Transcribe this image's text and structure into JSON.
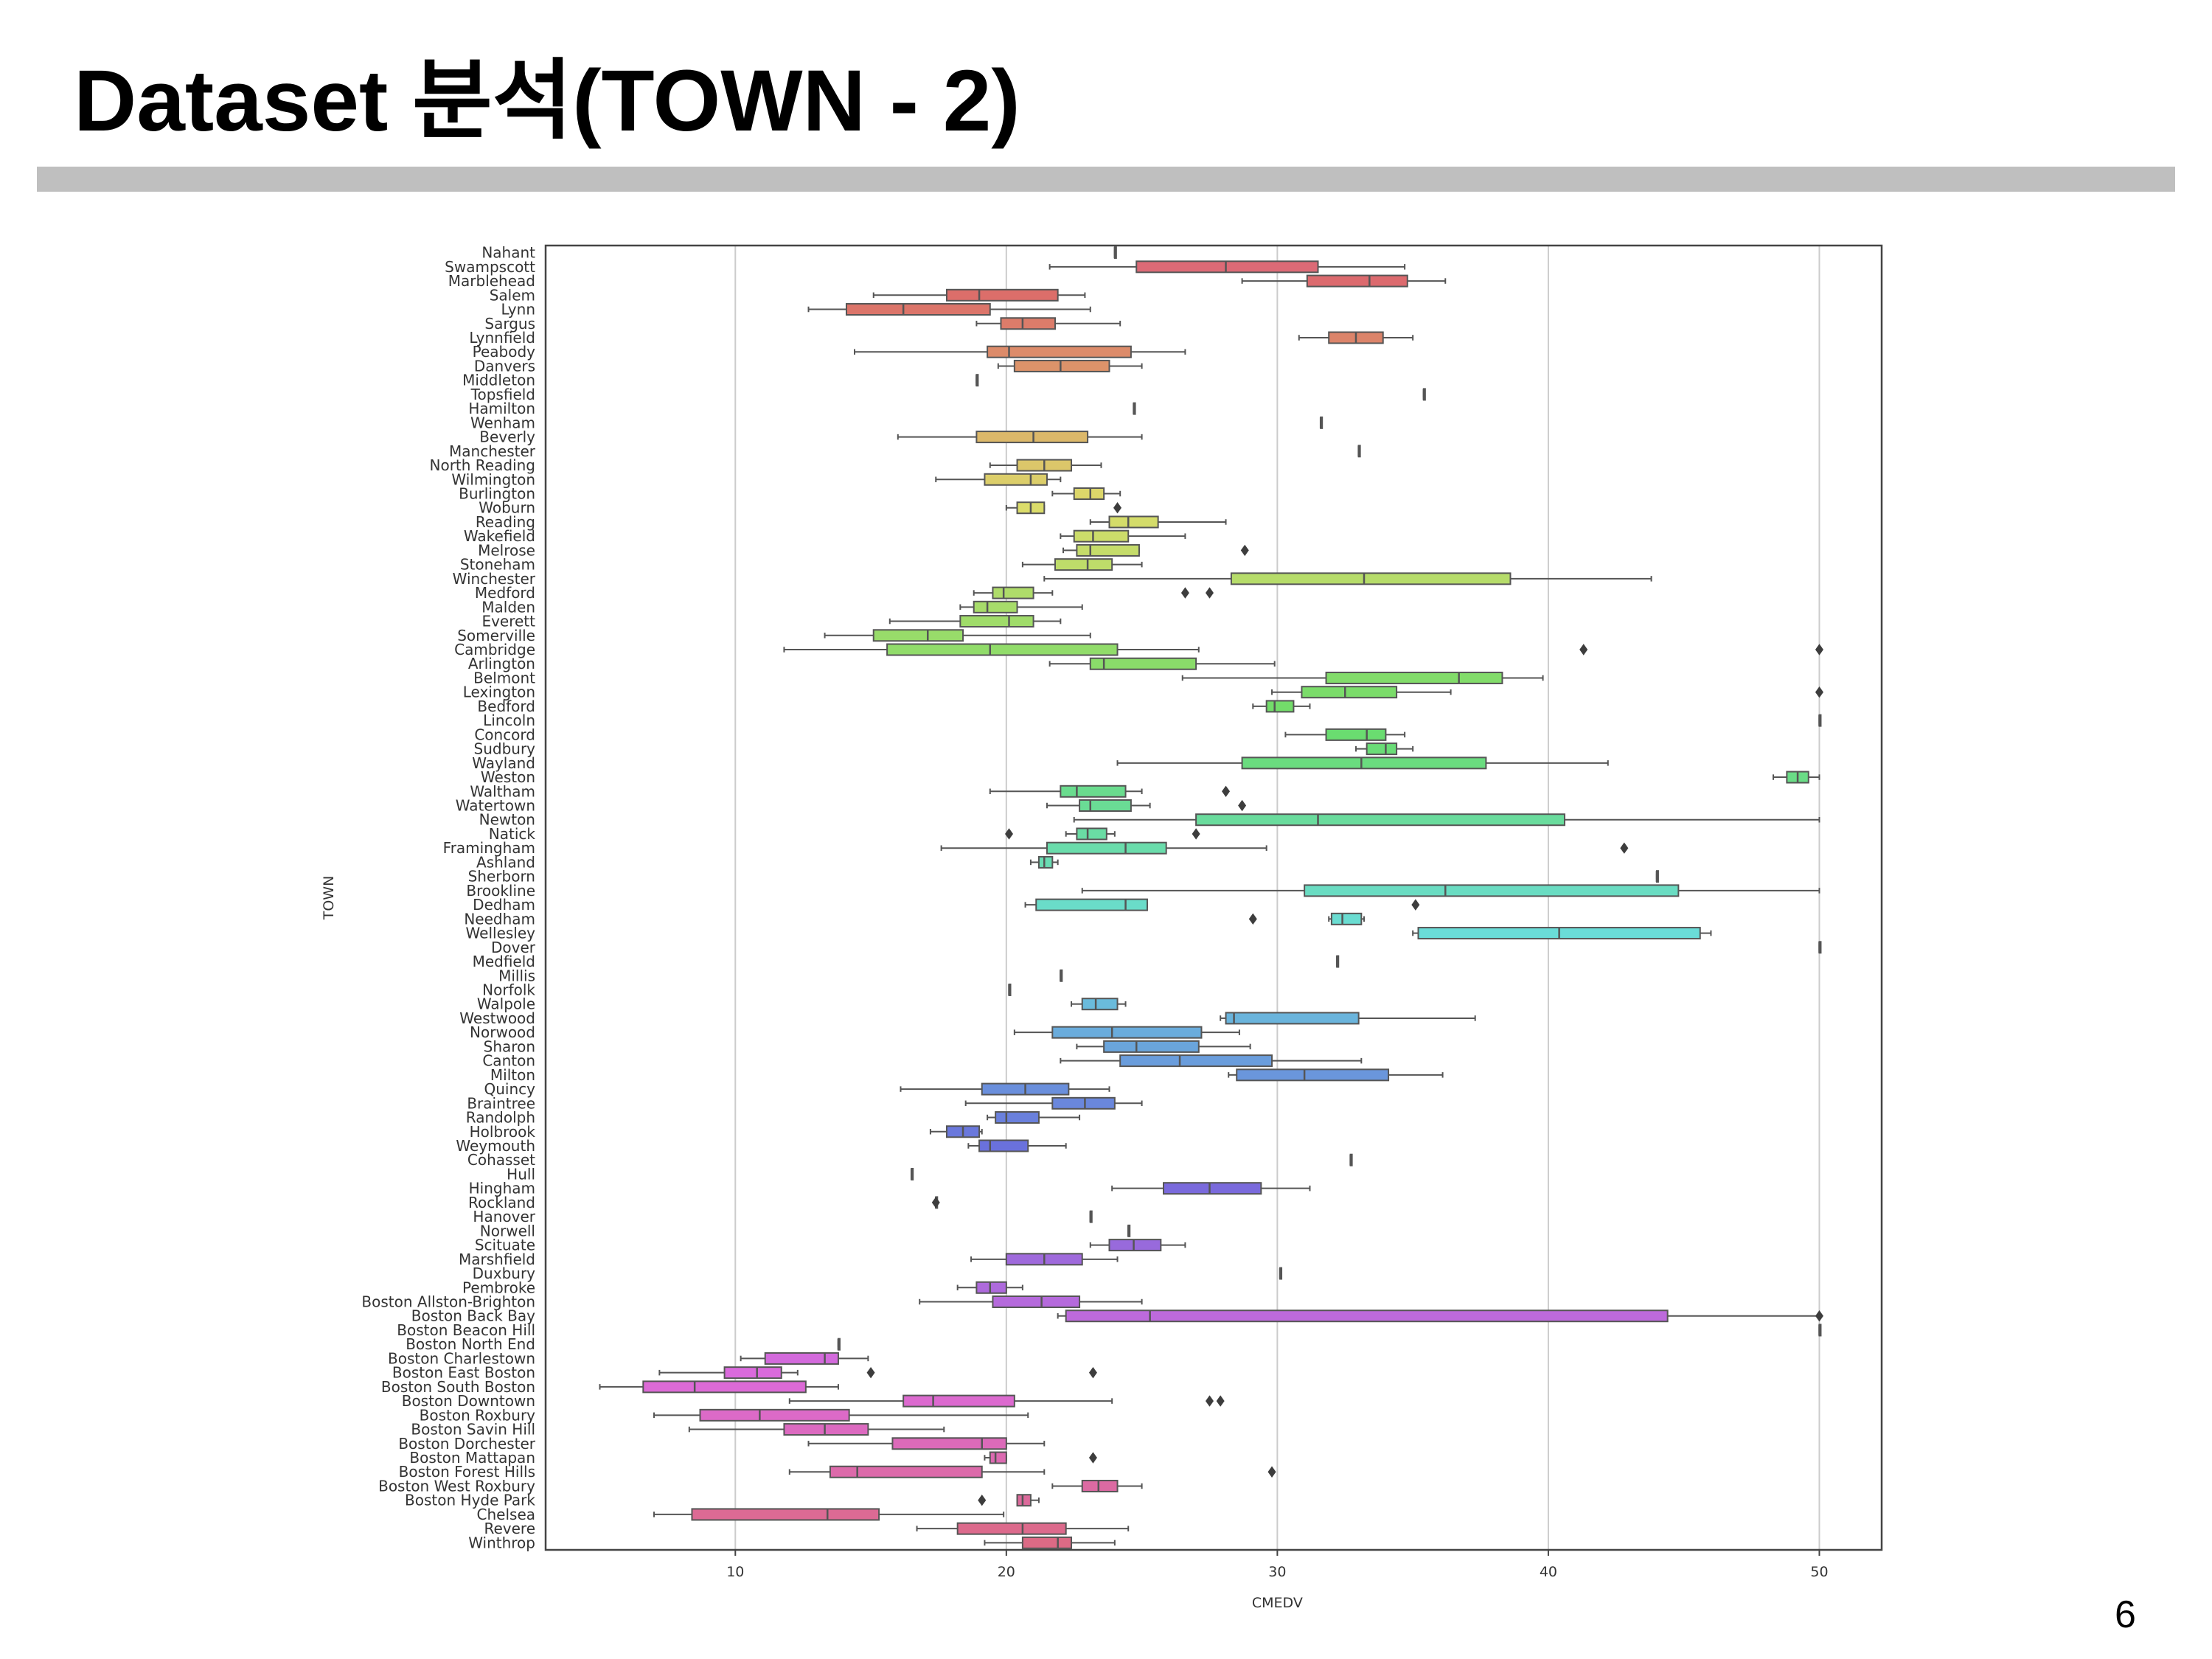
{
  "slide": {
    "title": "Dataset 분석(TOWN - 2)",
    "page_number": "6"
  },
  "chart_data": {
    "type": "boxplot",
    "orientation": "horizontal",
    "xlabel": "CMEDV",
    "ylabel": "TOWN",
    "xlim": [
      3,
      52.3
    ],
    "xticks": [
      10,
      20,
      30,
      40,
      50
    ],
    "grid": "vertical",
    "palette": "husl",
    "series": [
      {
        "town": "Nahant",
        "q1": 24,
        "median": 24,
        "q3": 24,
        "whisker_low": 24,
        "whisker_high": 24,
        "outliers": []
      },
      {
        "town": "Swampscott",
        "q1": 24.8,
        "median": 28.1,
        "q3": 31.5,
        "whisker_low": 21.6,
        "whisker_high": 34.7,
        "outliers": []
      },
      {
        "town": "Marblehead",
        "q1": 31.1,
        "median": 33.4,
        "q3": 34.8,
        "whisker_low": 28.7,
        "whisker_high": 36.2,
        "outliers": []
      },
      {
        "town": "Salem",
        "q1": 17.8,
        "median": 19.0,
        "q3": 21.9,
        "whisker_low": 15.1,
        "whisker_high": 22.9,
        "outliers": []
      },
      {
        "town": "Lynn",
        "q1": 14.1,
        "median": 16.2,
        "q3": 19.4,
        "whisker_low": 12.7,
        "whisker_high": 23.1,
        "outliers": []
      },
      {
        "town": "Sargus",
        "q1": 19.8,
        "median": 20.6,
        "q3": 21.8,
        "whisker_low": 18.9,
        "whisker_high": 24.2,
        "outliers": []
      },
      {
        "town": "Lynnfield",
        "q1": 31.9,
        "median": 32.9,
        "q3": 33.9,
        "whisker_low": 30.8,
        "whisker_high": 35.0,
        "outliers": []
      },
      {
        "town": "Peabody",
        "q1": 19.3,
        "median": 20.1,
        "q3": 24.6,
        "whisker_low": 14.4,
        "whisker_high": 26.6,
        "outliers": []
      },
      {
        "town": "Danvers",
        "q1": 20.3,
        "median": 22.0,
        "q3": 23.8,
        "whisker_low": 19.7,
        "whisker_high": 25.0,
        "outliers": []
      },
      {
        "town": "Middleton",
        "q1": 18.9,
        "median": 18.9,
        "q3": 18.9,
        "whisker_low": 18.9,
        "whisker_high": 18.9,
        "outliers": []
      },
      {
        "town": "Topsfield",
        "q1": 35.4,
        "median": 35.4,
        "q3": 35.4,
        "whisker_low": 35.4,
        "whisker_high": 35.4,
        "outliers": []
      },
      {
        "town": "Hamilton",
        "q1": 24.7,
        "median": 24.7,
        "q3": 24.7,
        "whisker_low": 24.7,
        "whisker_high": 24.7,
        "outliers": []
      },
      {
        "town": "Wenham",
        "q1": 31.6,
        "median": 31.6,
        "q3": 31.6,
        "whisker_low": 31.6,
        "whisker_high": 31.6,
        "outliers": []
      },
      {
        "town": "Beverly",
        "q1": 18.9,
        "median": 21.0,
        "q3": 23.0,
        "whisker_low": 16.0,
        "whisker_high": 25.0,
        "outliers": []
      },
      {
        "town": "Manchester",
        "q1": 33.0,
        "median": 33.0,
        "q3": 33.0,
        "whisker_low": 33.0,
        "whisker_high": 33.0,
        "outliers": []
      },
      {
        "town": "North Reading",
        "q1": 20.4,
        "median": 21.4,
        "q3": 22.4,
        "whisker_low": 19.4,
        "whisker_high": 23.5,
        "outliers": []
      },
      {
        "town": "Wilmington",
        "q1": 19.2,
        "median": 20.9,
        "q3": 21.5,
        "whisker_low": 17.4,
        "whisker_high": 22.0,
        "outliers": []
      },
      {
        "town": "Burlington",
        "q1": 22.5,
        "median": 23.1,
        "q3": 23.6,
        "whisker_low": 21.7,
        "whisker_high": 24.2,
        "outliers": []
      },
      {
        "town": "Woburn",
        "q1": 20.4,
        "median": 20.9,
        "q3": 21.4,
        "whisker_low": 20.0,
        "whisker_high": 21.4,
        "outliers": [
          24.1
        ]
      },
      {
        "town": "Reading",
        "q1": 23.8,
        "median": 24.5,
        "q3": 25.6,
        "whisker_low": 23.1,
        "whisker_high": 28.1,
        "outliers": []
      },
      {
        "town": "Wakefield",
        "q1": 22.5,
        "median": 23.2,
        "q3": 24.5,
        "whisker_low": 22.0,
        "whisker_high": 26.6,
        "outliers": []
      },
      {
        "town": "Melrose",
        "q1": 22.6,
        "median": 23.1,
        "q3": 24.9,
        "whisker_low": 22.1,
        "whisker_high": 24.9,
        "outliers": [
          28.8
        ]
      },
      {
        "town": "Stoneham",
        "q1": 21.8,
        "median": 23.0,
        "q3": 23.9,
        "whisker_low": 20.6,
        "whisker_high": 25.0,
        "outliers": []
      },
      {
        "town": "Winchester",
        "q1": 28.3,
        "median": 33.2,
        "q3": 38.6,
        "whisker_low": 21.4,
        "whisker_high": 43.8,
        "outliers": []
      },
      {
        "town": "Medford",
        "q1": 19.5,
        "median": 19.9,
        "q3": 21.0,
        "whisker_low": 18.8,
        "whisker_high": 21.7,
        "outliers": [
          26.6,
          27.5
        ]
      },
      {
        "town": "Malden",
        "q1": 18.8,
        "median": 19.3,
        "q3": 20.4,
        "whisker_low": 18.3,
        "whisker_high": 22.8,
        "outliers": []
      },
      {
        "town": "Everett",
        "q1": 18.3,
        "median": 20.1,
        "q3": 21.0,
        "whisker_low": 15.7,
        "whisker_high": 22.0,
        "outliers": []
      },
      {
        "town": "Somerville",
        "q1": 15.1,
        "median": 17.1,
        "q3": 18.4,
        "whisker_low": 13.3,
        "whisker_high": 23.1,
        "outliers": []
      },
      {
        "town": "Cambridge",
        "q1": 15.6,
        "median": 19.4,
        "q3": 24.1,
        "whisker_low": 11.8,
        "whisker_high": 27.1,
        "outliers": [
          41.3,
          50.0
        ]
      },
      {
        "town": "Arlington",
        "q1": 23.1,
        "median": 23.6,
        "q3": 27.0,
        "whisker_low": 21.6,
        "whisker_high": 29.9,
        "outliers": []
      },
      {
        "town": "Belmont",
        "q1": 31.8,
        "median": 36.7,
        "q3": 38.3,
        "whisker_low": 26.5,
        "whisker_high": 39.8,
        "outliers": []
      },
      {
        "town": "Lexington",
        "q1": 30.9,
        "median": 32.5,
        "q3": 34.4,
        "whisker_low": 29.8,
        "whisker_high": 36.4,
        "outliers": [
          50.0
        ]
      },
      {
        "town": "Bedford",
        "q1": 29.6,
        "median": 29.9,
        "q3": 30.6,
        "whisker_low": 29.1,
        "whisker_high": 31.2,
        "outliers": []
      },
      {
        "town": "Lincoln",
        "q1": 50.0,
        "median": 50.0,
        "q3": 50.0,
        "whisker_low": 50.0,
        "whisker_high": 50.0,
        "outliers": []
      },
      {
        "town": "Concord",
        "q1": 31.8,
        "median": 33.3,
        "q3": 34.0,
        "whisker_low": 30.3,
        "whisker_high": 34.7,
        "outliers": []
      },
      {
        "town": "Sudbury",
        "q1": 33.3,
        "median": 34.0,
        "q3": 34.4,
        "whisker_low": 32.9,
        "whisker_high": 35.0,
        "outliers": []
      },
      {
        "town": "Wayland",
        "q1": 28.7,
        "median": 33.1,
        "q3": 37.7,
        "whisker_low": 24.1,
        "whisker_high": 42.2,
        "outliers": []
      },
      {
        "town": "Weston",
        "q1": 48.8,
        "median": 49.2,
        "q3": 49.6,
        "whisker_low": 48.3,
        "whisker_high": 50.0,
        "outliers": []
      },
      {
        "town": "Waltham",
        "q1": 22.0,
        "median": 22.6,
        "q3": 24.4,
        "whisker_low": 19.4,
        "whisker_high": 25.0,
        "outliers": [
          28.1
        ]
      },
      {
        "town": "Watertown",
        "q1": 22.7,
        "median": 23.1,
        "q3": 24.6,
        "whisker_low": 21.5,
        "whisker_high": 25.3,
        "outliers": [
          28.7
        ]
      },
      {
        "town": "Newton",
        "q1": 27.0,
        "median": 31.5,
        "q3": 40.6,
        "whisker_low": 22.5,
        "whisker_high": 50.0,
        "outliers": []
      },
      {
        "town": "Natick",
        "q1": 22.6,
        "median": 23.0,
        "q3": 23.7,
        "whisker_low": 22.2,
        "whisker_high": 24.0,
        "outliers": [
          20.1,
          27.0
        ]
      },
      {
        "town": "Framingham",
        "q1": 21.5,
        "median": 24.4,
        "q3": 25.9,
        "whisker_low": 17.6,
        "whisker_high": 29.6,
        "outliers": [
          42.8
        ]
      },
      {
        "town": "Ashland",
        "q1": 21.2,
        "median": 21.4,
        "q3": 21.7,
        "whisker_low": 20.9,
        "whisker_high": 21.9,
        "outliers": []
      },
      {
        "town": "Sherborn",
        "q1": 44.0,
        "median": 44.0,
        "q3": 44.0,
        "whisker_low": 44.0,
        "whisker_high": 44.0,
        "outliers": []
      },
      {
        "town": "Brookline",
        "q1": 31.0,
        "median": 36.2,
        "q3": 44.8,
        "whisker_low": 22.8,
        "whisker_high": 50.0,
        "outliers": []
      },
      {
        "town": "Dedham",
        "q1": 21.1,
        "median": 24.4,
        "q3": 25.2,
        "whisker_low": 20.7,
        "whisker_high": 25.2,
        "outliers": [
          35.1
        ]
      },
      {
        "town": "Needham",
        "q1": 32.0,
        "median": 32.4,
        "q3": 33.1,
        "whisker_low": 31.9,
        "whisker_high": 33.2,
        "outliers": [
          29.1
        ]
      },
      {
        "town": "Wellesley",
        "q1": 35.2,
        "median": 40.4,
        "q3": 45.6,
        "whisker_low": 35.0,
        "whisker_high": 46.0,
        "outliers": []
      },
      {
        "town": "Dover",
        "q1": 50.0,
        "median": 50.0,
        "q3": 50.0,
        "whisker_low": 50.0,
        "whisker_high": 50.0,
        "outliers": []
      },
      {
        "town": "Medfield",
        "q1": 32.2,
        "median": 32.2,
        "q3": 32.2,
        "whisker_low": 32.2,
        "whisker_high": 32.2,
        "outliers": []
      },
      {
        "town": "Millis",
        "q1": 22.0,
        "median": 22.0,
        "q3": 22.0,
        "whisker_low": 22.0,
        "whisker_high": 22.0,
        "outliers": []
      },
      {
        "town": "Norfolk",
        "q1": 20.1,
        "median": 20.1,
        "q3": 20.1,
        "whisker_low": 20.1,
        "whisker_high": 20.1,
        "outliers": []
      },
      {
        "town": "Walpole",
        "q1": 22.8,
        "median": 23.3,
        "q3": 24.1,
        "whisker_low": 22.4,
        "whisker_high": 24.4,
        "outliers": []
      },
      {
        "town": "Westwood",
        "q1": 28.1,
        "median": 28.4,
        "q3": 33.0,
        "whisker_low": 27.9,
        "whisker_high": 37.3,
        "outliers": []
      },
      {
        "town": "Norwood",
        "q1": 21.7,
        "median": 23.9,
        "q3": 27.2,
        "whisker_low": 20.3,
        "whisker_high": 28.6,
        "outliers": []
      },
      {
        "town": "Sharon",
        "q1": 23.6,
        "median": 24.8,
        "q3": 27.1,
        "whisker_low": 22.6,
        "whisker_high": 29.0,
        "outliers": []
      },
      {
        "town": "Canton",
        "q1": 24.2,
        "median": 26.4,
        "q3": 29.8,
        "whisker_low": 22.0,
        "whisker_high": 33.1,
        "outliers": []
      },
      {
        "town": "Milton",
        "q1": 28.5,
        "median": 31.0,
        "q3": 34.1,
        "whisker_low": 28.2,
        "whisker_high": 36.1,
        "outliers": []
      },
      {
        "town": "Quincy",
        "q1": 19.1,
        "median": 20.7,
        "q3": 22.3,
        "whisker_low": 16.1,
        "whisker_high": 23.8,
        "outliers": []
      },
      {
        "town": "Braintree",
        "q1": 21.7,
        "median": 22.9,
        "q3": 24.0,
        "whisker_low": 18.5,
        "whisker_high": 25.0,
        "outliers": []
      },
      {
        "town": "Randolph",
        "q1": 19.6,
        "median": 20.0,
        "q3": 21.2,
        "whisker_low": 19.3,
        "whisker_high": 22.7,
        "outliers": []
      },
      {
        "town": "Holbrook",
        "q1": 17.8,
        "median": 18.4,
        "q3": 19.0,
        "whisker_low": 17.2,
        "whisker_high": 19.1,
        "outliers": []
      },
      {
        "town": "Weymouth",
        "q1": 19.0,
        "median": 19.4,
        "q3": 20.8,
        "whisker_low": 18.6,
        "whisker_high": 22.2,
        "outliers": []
      },
      {
        "town": "Cohasset",
        "q1": 32.7,
        "median": 32.7,
        "q3": 32.7,
        "whisker_low": 32.7,
        "whisker_high": 32.7,
        "outliers": []
      },
      {
        "town": "Hull",
        "q1": 16.5,
        "median": 16.5,
        "q3": 16.5,
        "whisker_low": 16.5,
        "whisker_high": 16.5,
        "outliers": []
      },
      {
        "town": "Hingham",
        "q1": 25.8,
        "median": 27.5,
        "q3": 29.4,
        "whisker_low": 23.9,
        "whisker_high": 31.2,
        "outliers": []
      },
      {
        "town": "Rockland",
        "q1": 17.4,
        "median": 17.4,
        "q3": 17.4,
        "whisker_low": 17.4,
        "whisker_high": 17.4,
        "outliers": [
          17.4
        ]
      },
      {
        "town": "Hanover",
        "q1": 23.1,
        "median": 23.1,
        "q3": 23.1,
        "whisker_low": 23.1,
        "whisker_high": 23.1,
        "outliers": []
      },
      {
        "town": "Norwell",
        "q1": 24.5,
        "median": 24.5,
        "q3": 24.5,
        "whisker_low": 24.5,
        "whisker_high": 24.5,
        "outliers": []
      },
      {
        "town": "Scituate",
        "q1": 23.8,
        "median": 24.7,
        "q3": 25.7,
        "whisker_low": 23.1,
        "whisker_high": 26.6,
        "outliers": []
      },
      {
        "town": "Marshfield",
        "q1": 20.0,
        "median": 21.4,
        "q3": 22.8,
        "whisker_low": 18.7,
        "whisker_high": 24.1,
        "outliers": []
      },
      {
        "town": "Duxbury",
        "q1": 30.1,
        "median": 30.1,
        "q3": 30.1,
        "whisker_low": 30.1,
        "whisker_high": 30.1,
        "outliers": []
      },
      {
        "town": "Pembroke",
        "q1": 18.9,
        "median": 19.4,
        "q3": 20.0,
        "whisker_low": 18.2,
        "whisker_high": 20.6,
        "outliers": []
      },
      {
        "town": "Boston Allston-Brighton",
        "q1": 19.5,
        "median": 21.3,
        "q3": 22.7,
        "whisker_low": 16.8,
        "whisker_high": 25.0,
        "outliers": []
      },
      {
        "town": "Boston Back Bay",
        "q1": 22.2,
        "median": 25.3,
        "q3": 44.4,
        "whisker_low": 21.9,
        "whisker_high": 50.0,
        "outliers": [
          50.0
        ]
      },
      {
        "town": "Boston Beacon Hill",
        "q1": 50,
        "median": 50,
        "q3": 50,
        "whisker_low": 50,
        "whisker_high": 50,
        "outliers": []
      },
      {
        "town": "Boston North End",
        "q1": 13.8,
        "median": 13.8,
        "q3": 13.8,
        "whisker_low": 13.8,
        "whisker_high": 13.8,
        "outliers": []
      },
      {
        "town": "Boston Charlestown",
        "q1": 11.1,
        "median": 13.3,
        "q3": 13.8,
        "whisker_low": 10.2,
        "whisker_high": 14.9,
        "outliers": []
      },
      {
        "town": "Boston East Boston",
        "q1": 9.6,
        "median": 10.8,
        "q3": 11.7,
        "whisker_low": 7.2,
        "whisker_high": 12.3,
        "outliers": [
          15.0,
          23.2
        ]
      },
      {
        "town": "Boston South Boston",
        "q1": 6.6,
        "median": 8.5,
        "q3": 12.6,
        "whisker_low": 5.0,
        "whisker_high": 13.8,
        "outliers": []
      },
      {
        "town": "Boston Downtown",
        "q1": 16.2,
        "median": 17.3,
        "q3": 20.3,
        "whisker_low": 12.0,
        "whisker_high": 23.9,
        "outliers": [
          27.5,
          27.9
        ]
      },
      {
        "town": "Boston Roxbury",
        "q1": 8.7,
        "median": 10.9,
        "q3": 14.2,
        "whisker_low": 7.0,
        "whisker_high": 20.8,
        "outliers": []
      },
      {
        "town": "Boston Savin Hill",
        "q1": 11.8,
        "median": 13.3,
        "q3": 14.9,
        "whisker_low": 8.3,
        "whisker_high": 17.7,
        "outliers": []
      },
      {
        "town": "Boston Dorchester",
        "q1": 15.8,
        "median": 19.1,
        "q3": 20.0,
        "whisker_low": 12.7,
        "whisker_high": 21.4,
        "outliers": []
      },
      {
        "town": "Boston Mattapan",
        "q1": 19.4,
        "median": 19.6,
        "q3": 20.0,
        "whisker_low": 19.2,
        "whisker_high": 20.0,
        "outliers": [
          23.2
        ]
      },
      {
        "town": "Boston Forest Hills",
        "q1": 13.5,
        "median": 14.5,
        "q3": 19.1,
        "whisker_low": 12.0,
        "whisker_high": 21.4,
        "outliers": [
          29.8
        ]
      },
      {
        "town": "Boston West Roxbury",
        "q1": 22.8,
        "median": 23.4,
        "q3": 24.1,
        "whisker_low": 21.7,
        "whisker_high": 25.0,
        "outliers": []
      },
      {
        "town": "Boston Hyde Park",
        "q1": 20.4,
        "median": 20.6,
        "q3": 20.9,
        "whisker_low": 20.4,
        "whisker_high": 21.2,
        "outliers": [
          19.1
        ]
      },
      {
        "town": "Chelsea",
        "q1": 8.4,
        "median": 13.4,
        "q3": 15.3,
        "whisker_low": 7.0,
        "whisker_high": 19.9,
        "outliers": []
      },
      {
        "town": "Revere",
        "q1": 18.2,
        "median": 20.6,
        "q3": 22.2,
        "whisker_low": 16.7,
        "whisker_high": 24.5,
        "outliers": []
      },
      {
        "town": "Winthrop",
        "q1": 20.6,
        "median": 21.9,
        "q3": 22.4,
        "whisker_low": 19.2,
        "whisker_high": 24.0,
        "outliers": []
      }
    ]
  }
}
